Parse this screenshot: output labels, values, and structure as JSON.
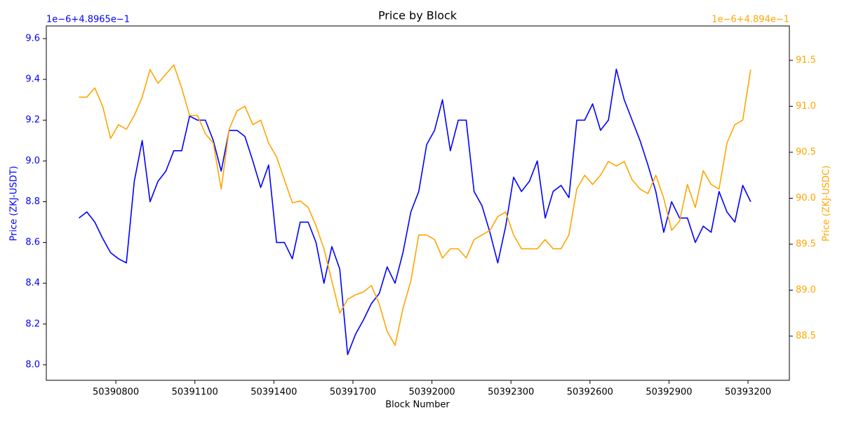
{
  "chart_data": {
    "type": "line",
    "title": "Price by Block",
    "x_label": "Block Number",
    "y_label": "Price (ZKJ-USDT)",
    "y2_label": "Price (ZKJ-USDC)",
    "y_offset_label": "1e−6+4.8965e−1",
    "y2_offset_label": "1e−6+4.894e−1",
    "x": [
      50390660,
      50390690,
      50390720,
      50390750,
      50390780,
      50390810,
      50390840,
      50390870,
      50390900,
      50390930,
      50390960,
      50390990,
      50391020,
      50391050,
      50391080,
      50391110,
      50391140,
      50391170,
      50391200,
      50391230,
      50391260,
      50391290,
      50391320,
      50391350,
      50391380,
      50391410,
      50391440,
      50391470,
      50391500,
      50391530,
      50391560,
      50391590,
      50391620,
      50391650,
      50391680,
      50391710,
      50391740,
      50391770,
      50391800,
      50391830,
      50391860,
      50391890,
      50391920,
      50391950,
      50391980,
      50392010,
      50392040,
      50392070,
      50392100,
      50392130,
      50392160,
      50392190,
      50392220,
      50392250,
      50392280,
      50392310,
      50392340,
      50392370,
      50392400,
      50392430,
      50392460,
      50392490,
      50392520,
      50392550,
      50392580,
      50392610,
      50392640,
      50392670,
      50392700,
      50392730,
      50392760,
      50392790,
      50392820,
      50392850,
      50392880,
      50392910,
      50392940,
      50392970,
      50393000,
      50393030,
      50393060,
      50393090,
      50393120,
      50393150,
      50393180,
      50393210
    ],
    "series": [
      {
        "name": "Price (ZKJ-USDT)",
        "color": "#0000ff",
        "axis": "y",
        "values": [
          8.72,
          8.75,
          8.7,
          8.62,
          8.55,
          8.52,
          8.5,
          8.9,
          9.1,
          8.8,
          8.9,
          8.95,
          9.05,
          9.05,
          9.22,
          9.2,
          9.2,
          9.1,
          8.95,
          9.15,
          9.15,
          9.12,
          9.0,
          8.87,
          8.98,
          8.6,
          8.6,
          8.52,
          8.7,
          8.7,
          8.6,
          8.4,
          8.58,
          8.47,
          8.05,
          8.15,
          8.22,
          8.3,
          8.35,
          8.48,
          8.4,
          8.55,
          8.75,
          8.85,
          9.08,
          9.15,
          9.3,
          9.05,
          9.2,
          9.2,
          8.85,
          8.78,
          8.65,
          8.5,
          8.68,
          8.92,
          8.85,
          8.9,
          9.0,
          8.72,
          8.85,
          8.88,
          8.82,
          9.2,
          9.2,
          9.28,
          9.15,
          9.2,
          9.45,
          9.3,
          9.2,
          9.1,
          8.98,
          8.85,
          8.65,
          8.8,
          8.72,
          8.72,
          8.6,
          8.68,
          8.65,
          8.85,
          8.75,
          8.7,
          8.88,
          8.8
        ]
      },
      {
        "name": "Price (ZKJ-USDC)",
        "color": "#ffa500",
        "axis": "y2",
        "values": [
          91.1,
          91.1,
          91.2,
          91.0,
          90.65,
          90.8,
          90.75,
          90.9,
          91.1,
          91.4,
          91.25,
          91.35,
          91.45,
          91.2,
          90.9,
          90.9,
          90.7,
          90.6,
          90.1,
          90.75,
          90.95,
          91.0,
          90.8,
          90.85,
          90.6,
          90.45,
          90.2,
          89.95,
          89.97,
          89.9,
          89.7,
          89.45,
          89.1,
          88.75,
          88.9,
          88.95,
          88.98,
          89.05,
          88.85,
          88.55,
          88.4,
          88.8,
          89.1,
          89.6,
          89.6,
          89.55,
          89.35,
          89.45,
          89.45,
          89.35,
          89.55,
          89.6,
          89.65,
          89.8,
          89.85,
          89.6,
          89.45,
          89.45,
          89.45,
          89.55,
          89.45,
          89.45,
          89.6,
          90.1,
          90.25,
          90.15,
          90.25,
          90.4,
          90.35,
          90.4,
          90.2,
          90.1,
          90.05,
          90.25,
          90.0,
          89.65,
          89.75,
          90.15,
          89.9,
          90.3,
          90.15,
          90.1,
          90.6,
          90.8,
          90.85,
          91.4
        ]
      }
    ],
    "xlim": [
      50390536,
      50393357
    ],
    "xticks": [
      50390800,
      50391100,
      50391400,
      50391700,
      50392000,
      50392300,
      50392600,
      50392900,
      50393200
    ],
    "ylim": [
      7.924,
      9.662
    ],
    "yticks": [
      {
        "value": 8,
        "label": "8.0"
      },
      8.2,
      8.4,
      8.6,
      8.8,
      {
        "value": 9,
        "label": "9.0"
      },
      9.2,
      9.4,
      9.6
    ],
    "y2lim": [
      88.019,
      91.874
    ],
    "y2ticks": [
      88.5,
      {
        "value": 89,
        "label": "89.0"
      },
      89.5,
      {
        "value": 90,
        "label": "90.0"
      },
      90.5,
      {
        "value": 91,
        "label": "91.0"
      },
      91.5
    ],
    "grid": false
  }
}
